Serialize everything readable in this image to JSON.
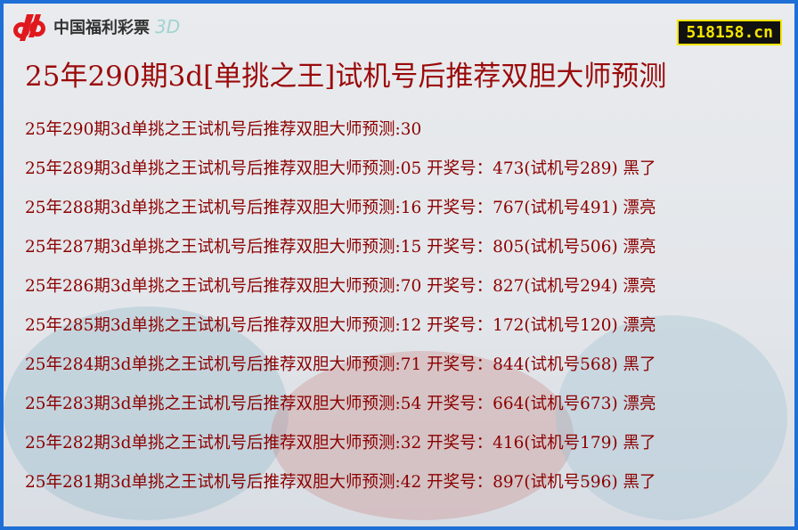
{
  "logo": {
    "text": "中国福利彩票",
    "suffix": "3D"
  },
  "site_badge": "518158.cn",
  "title": "25年290期3d[单挑之王]试机号后推荐双胆大师预测",
  "rows": [
    "25年290期3d单挑之王试机号后推荐双胆大师预测:30",
    "25年289期3d单挑之王试机号后推荐双胆大师预测:05 开奖号：473(试机号289) 黑了",
    "25年288期3d单挑之王试机号后推荐双胆大师预测:16 开奖号：767(试机号491) 漂亮",
    "25年287期3d单挑之王试机号后推荐双胆大师预测:15 开奖号：805(试机号506) 漂亮",
    "25年286期3d单挑之王试机号后推荐双胆大师预测:70 开奖号：827(试机号294) 漂亮",
    "25年285期3d单挑之王试机号后推荐双胆大师预测:12 开奖号：172(试机号120) 漂亮",
    "25年284期3d单挑之王试机号后推荐双胆大师预测:71 开奖号：844(试机号568) 黑了",
    "25年283期3d单挑之王试机号后推荐双胆大师预测:54 开奖号：664(试机号673) 漂亮",
    "25年282期3d单挑之王试机号后推荐双胆大师预测:32 开奖号：416(试机号179) 黑了",
    "25年281期3d单挑之王试机号后推荐双胆大师预测:42 开奖号：897(试机号596) 黑了"
  ],
  "colors": {
    "border": "#1e6fd6",
    "text": "#8b0000",
    "badge_bg": "#111111",
    "badge_fg": "#f5e500"
  }
}
